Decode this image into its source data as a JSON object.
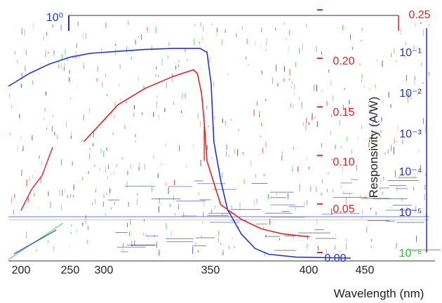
{
  "chart_data": {
    "type": "line",
    "title": "",
    "xlabel": "Wavelength (nm)",
    "ylabel_right": "Responsivity (A/W)",
    "x_ticks": [
      "200",
      "250",
      "300",
      "350",
      "400",
      "450"
    ],
    "y_left_ticks": [
      "10⁰"
    ],
    "y_right_ticks": [
      "0.25",
      "0.20",
      "0.15",
      "0.10",
      "0.05",
      "0.00"
    ],
    "y_right_log_ticks": [
      "10⁻¹",
      "10⁻²",
      "10⁻³",
      "10⁻⁴",
      "10⁻⁵",
      "10⁻⁶"
    ],
    "x_range": [
      200,
      450
    ],
    "y_right_range": [
      0,
      0.25
    ],
    "colors": {
      "blue": "#2233dd",
      "red": "#e8231f",
      "green": "#22cc22"
    },
    "series": [
      {
        "color": "#2233dd",
        "x": [
          200,
          215,
          230,
          245,
          260,
          280,
          300,
          320,
          340,
          345,
          348,
          350,
          355,
          360,
          370,
          380,
          390,
          410,
          450
        ],
        "y": [
          0.177,
          0.19,
          0.2,
          0.207,
          0.211,
          0.213,
          0.215,
          0.216,
          0.216,
          0.212,
          0.18,
          0.12,
          0.08,
          0.05,
          0.025,
          0.01,
          0.004,
          0.001,
          0.0
        ]
      },
      {
        "color": "#e8231f",
        "x": [
          255,
          265,
          280,
          300,
          320,
          335,
          338,
          341,
          343,
          345,
          355,
          370,
          385,
          400,
          420
        ],
        "y": [
          0.12,
          0.135,
          0.158,
          0.175,
          0.187,
          0.194,
          0.19,
          0.17,
          0.14,
          0.1,
          0.055,
          0.04,
          0.03,
          0.025,
          0.022
        ]
      }
    ]
  }
}
